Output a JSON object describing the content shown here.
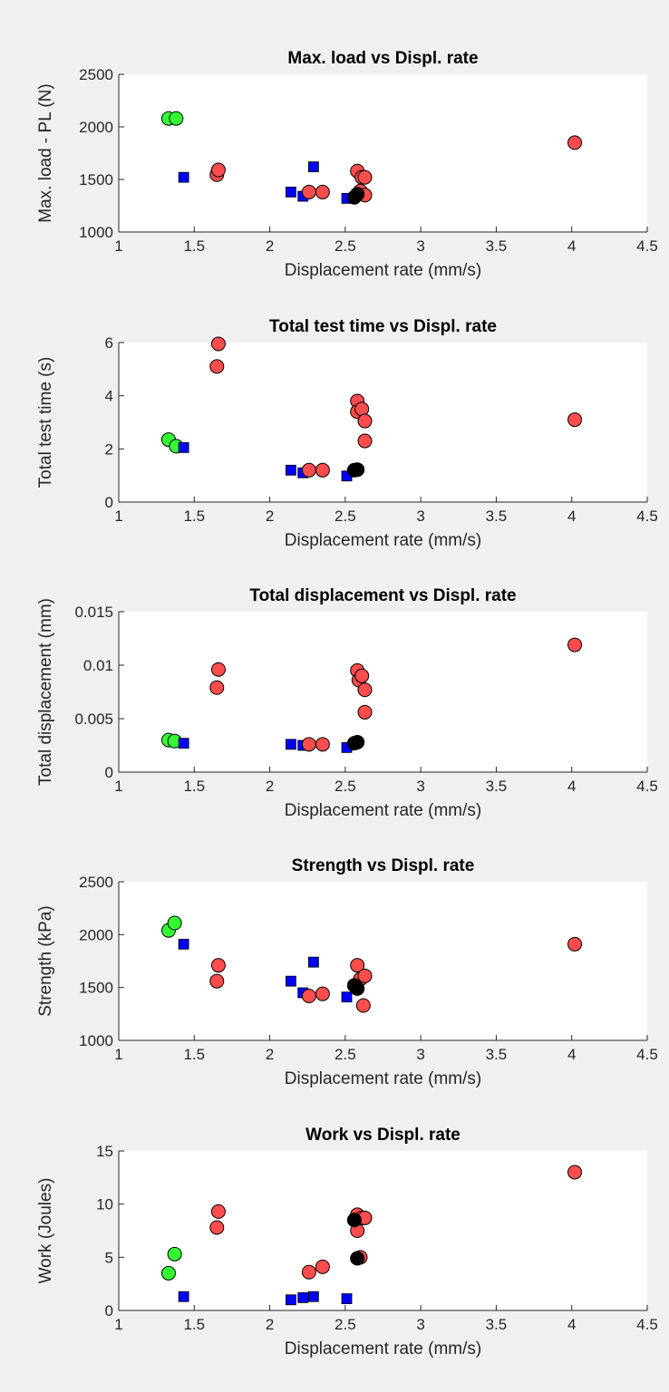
{
  "colors": {
    "figure_background": "#f0f0f0",
    "axes_background": "#ffffff",
    "green_series": "#33ff33",
    "red_series": "#ff4d4d",
    "blue_series": "#0000ff",
    "black_series": "#000000"
  },
  "chart_data": [
    {
      "type": "scatter",
      "title": "Max. load vs Displ. rate",
      "xlabel": "Displacement rate (mm/s)",
      "ylabel": "Max. load - PL (N)",
      "xlim": [
        1,
        4.5
      ],
      "ylim": [
        1000,
        2500
      ],
      "xticks": [
        1,
        1.5,
        2,
        2.5,
        3,
        3.5,
        4,
        4.5
      ],
      "xtick_labels": [
        "1",
        "1.5",
        "2",
        "2.5",
        "3",
        "3.5",
        "4",
        "4.5"
      ],
      "yticks": [
        1000,
        1500,
        2000,
        2500
      ],
      "ytick_labels": [
        "1000",
        "1500",
        "2000",
        "2500"
      ],
      "grid": false,
      "series": [
        {
          "marker": "circle",
          "color": "#33ff33",
          "x": [
            1.33,
            1.38
          ],
          "y": [
            2080,
            2080
          ]
        },
        {
          "marker": "square",
          "color": "#0000ff",
          "x": [
            1.43,
            2.14,
            2.22,
            2.29,
            2.51
          ],
          "y": [
            1520,
            1380,
            1340,
            1620,
            1320
          ]
        },
        {
          "marker": "circle",
          "color": "#ff4d4d",
          "x": [
            1.65,
            1.66,
            2.26,
            2.35,
            2.58,
            2.6,
            2.61,
            2.63,
            2.63,
            4.02
          ],
          "y": [
            1545,
            1590,
            1380,
            1380,
            1580,
            1390,
            1520,
            1350,
            1520,
            1850
          ]
        },
        {
          "marker": "circle",
          "color": "#000000",
          "x": [
            2.56,
            2.58
          ],
          "y": [
            1330,
            1360
          ]
        }
      ]
    },
    {
      "type": "scatter",
      "title": "Total test time vs Displ. rate",
      "xlabel": "Displacement rate (mm/s)",
      "ylabel": "Total test time (s)",
      "xlim": [
        1,
        4.5
      ],
      "ylim": [
        0,
        6
      ],
      "xticks": [
        1,
        1.5,
        2,
        2.5,
        3,
        3.5,
        4,
        4.5
      ],
      "xtick_labels": [
        "1",
        "1.5",
        "2",
        "2.5",
        "3",
        "3.5",
        "4",
        "4.5"
      ],
      "yticks": [
        0,
        2,
        4,
        6
      ],
      "ytick_labels": [
        "0",
        "2",
        "4",
        "6"
      ],
      "grid": false,
      "series": [
        {
          "marker": "circle",
          "color": "#33ff33",
          "x": [
            1.33,
            1.38
          ],
          "y": [
            2.35,
            2.1
          ]
        },
        {
          "marker": "square",
          "color": "#0000ff",
          "x": [
            1.43,
            2.14,
            2.22,
            2.51
          ],
          "y": [
            2.05,
            1.2,
            1.1,
            0.98
          ]
        },
        {
          "marker": "circle",
          "color": "#ff4d4d",
          "x": [
            1.65,
            1.66,
            2.26,
            2.35,
            2.58,
            2.58,
            2.61,
            2.63,
            2.63,
            4.02
          ],
          "y": [
            5.1,
            5.95,
            1.2,
            1.2,
            3.8,
            3.4,
            3.5,
            2.3,
            3.05,
            3.1
          ]
        },
        {
          "marker": "circle",
          "color": "#000000",
          "x": [
            2.56,
            2.58
          ],
          "y": [
            1.2,
            1.22
          ]
        }
      ]
    },
    {
      "type": "scatter",
      "title": "Total displacement vs Displ. rate",
      "xlabel": "Displacement rate (mm/s)",
      "ylabel": "Total displacement (mm)",
      "xlim": [
        1,
        4.5
      ],
      "ylim": [
        0,
        0.015
      ],
      "xticks": [
        1,
        1.5,
        2,
        2.5,
        3,
        3.5,
        4,
        4.5
      ],
      "xtick_labels": [
        "1",
        "1.5",
        "2",
        "2.5",
        "3",
        "3.5",
        "4",
        "4.5"
      ],
      "yticks": [
        0,
        0.005,
        0.01,
        0.015
      ],
      "ytick_labels": [
        "0",
        "0.005",
        "0.01",
        "0.015"
      ],
      "grid": false,
      "series": [
        {
          "marker": "circle",
          "color": "#33ff33",
          "x": [
            1.33,
            1.37
          ],
          "y": [
            0.003,
            0.0029
          ]
        },
        {
          "marker": "square",
          "color": "#0000ff",
          "x": [
            1.43,
            2.14,
            2.22,
            2.51
          ],
          "y": [
            0.0027,
            0.0026,
            0.0025,
            0.0023
          ]
        },
        {
          "marker": "circle",
          "color": "#ff4d4d",
          "x": [
            1.65,
            1.66,
            2.26,
            2.35,
            2.58,
            2.59,
            2.61,
            2.63,
            2.63,
            4.02
          ],
          "y": [
            0.0079,
            0.0096,
            0.0026,
            0.0026,
            0.0095,
            0.0086,
            0.009,
            0.0056,
            0.0077,
            0.0119
          ]
        },
        {
          "marker": "circle",
          "color": "#000000",
          "x": [
            2.56,
            2.58
          ],
          "y": [
            0.0027,
            0.0028
          ]
        }
      ]
    },
    {
      "type": "scatter",
      "title": "Strength vs Displ. rate",
      "xlabel": "Displacement rate (mm/s)",
      "ylabel": "Strength (kPa)",
      "xlim": [
        1,
        4.5
      ],
      "ylim": [
        1000,
        2500
      ],
      "xticks": [
        1,
        1.5,
        2,
        2.5,
        3,
        3.5,
        4,
        4.5
      ],
      "xtick_labels": [
        "1",
        "1.5",
        "2",
        "2.5",
        "3",
        "3.5",
        "4",
        "4.5"
      ],
      "yticks": [
        1000,
        1500,
        2000,
        2500
      ],
      "ytick_labels": [
        "1000",
        "1500",
        "2000",
        "2500"
      ],
      "grid": false,
      "series": [
        {
          "marker": "circle",
          "color": "#33ff33",
          "x": [
            1.33,
            1.37
          ],
          "y": [
            2040,
            2110
          ]
        },
        {
          "marker": "square",
          "color": "#0000ff",
          "x": [
            1.43,
            2.14,
            2.22,
            2.29,
            2.51
          ],
          "y": [
            1910,
            1560,
            1450,
            1740,
            1410
          ]
        },
        {
          "marker": "circle",
          "color": "#ff4d4d",
          "x": [
            1.65,
            1.66,
            2.26,
            2.35,
            2.58,
            2.6,
            2.62,
            2.63,
            4.02
          ],
          "y": [
            1560,
            1710,
            1420,
            1440,
            1710,
            1580,
            1330,
            1610,
            1910
          ]
        },
        {
          "marker": "circle",
          "color": "#000000",
          "x": [
            2.56,
            2.58
          ],
          "y": [
            1520,
            1490
          ]
        }
      ]
    },
    {
      "type": "scatter",
      "title": "Work vs Displ. rate",
      "xlabel": "Displacement rate (mm/s)",
      "ylabel": "Work (Joules)",
      "xlim": [
        1,
        4.5
      ],
      "ylim": [
        0,
        15
      ],
      "xticks": [
        1,
        1.5,
        2,
        2.5,
        3,
        3.5,
        4,
        4.5
      ],
      "xtick_labels": [
        "1",
        "1.5",
        "2",
        "2.5",
        "3",
        "3.5",
        "4",
        "4.5"
      ],
      "yticks": [
        0,
        5,
        10,
        15
      ],
      "ytick_labels": [
        "0",
        "5",
        "10",
        "15"
      ],
      "grid": false,
      "series": [
        {
          "marker": "circle",
          "color": "#33ff33",
          "x": [
            1.33,
            1.37
          ],
          "y": [
            3.5,
            5.3
          ]
        },
        {
          "marker": "square",
          "color": "#0000ff",
          "x": [
            1.43,
            2.14,
            2.22,
            2.29,
            2.51
          ],
          "y": [
            1.3,
            1.0,
            1.2,
            1.3,
            1.1
          ]
        },
        {
          "marker": "circle",
          "color": "#ff4d4d",
          "x": [
            1.65,
            1.66,
            2.26,
            2.35,
            2.58,
            2.58,
            2.6,
            2.61,
            2.63,
            4.02
          ],
          "y": [
            7.8,
            9.3,
            3.6,
            4.1,
            9.0,
            7.5,
            5.0,
            8.7,
            8.7,
            13.0
          ]
        },
        {
          "marker": "circle",
          "color": "#000000",
          "x": [
            2.56,
            2.58
          ],
          "y": [
            8.5,
            4.9
          ]
        }
      ]
    }
  ]
}
